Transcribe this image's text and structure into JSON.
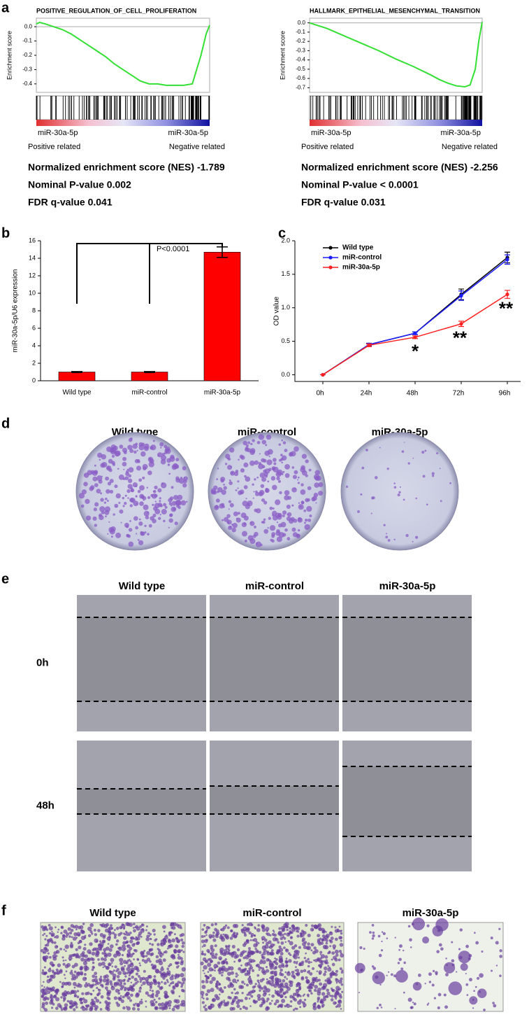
{
  "panel_labels": [
    "a",
    "b",
    "c",
    "d",
    "e",
    "f"
  ],
  "chart_data": [
    {
      "type": "gsea",
      "title": "POSITIVE_REGULATION_OF_CELL_PROLIFERATION",
      "ylabel": "Enrichment score",
      "x": [
        0,
        2,
        5,
        10,
        15,
        20,
        25,
        30,
        35,
        40,
        45,
        50,
        55,
        60,
        65,
        70,
        75,
        80,
        85,
        90,
        95,
        98,
        100
      ],
      "values": [
        0.02,
        0.03,
        0.02,
        0.0,
        -0.02,
        -0.05,
        -0.09,
        -0.13,
        -0.17,
        -0.21,
        -0.26,
        -0.3,
        -0.34,
        -0.38,
        -0.4,
        -0.4,
        -0.41,
        -0.41,
        -0.41,
        -0.4,
        -0.2,
        -0.05,
        0.01
      ],
      "color": "#33e033",
      "xlim": [
        0,
        100
      ],
      "ylim": [
        -0.44,
        0.04
      ],
      "yticks": [
        {
          "value": 0,
          "label": "0.0"
        },
        -0.1,
        -0.2,
        -0.3,
        -0.4
      ],
      "annotations": [
        "miR-30a-5p",
        "Positive related",
        "miR-30a-5p",
        "Negative related"
      ],
      "stats": [
        "Normalized enrichment score (NES)  -1.789",
        "Nominal P-value  0.002",
        "FDR q-value  0.041"
      ]
    },
    {
      "type": "gsea",
      "title": "HALLMARK_EPITHELIAL_MESENCHYMAL_TRANSITION",
      "ylabel": "Enrichment score",
      "x": [
        0,
        10,
        20,
        30,
        40,
        50,
        60,
        70,
        75,
        80,
        85,
        90,
        93,
        96,
        98,
        100
      ],
      "values": [
        0.0,
        -0.06,
        -0.14,
        -0.22,
        -0.3,
        -0.39,
        -0.47,
        -0.56,
        -0.61,
        -0.65,
        -0.68,
        -0.69,
        -0.67,
        -0.5,
        -0.2,
        0.01
      ],
      "color": "#33e033",
      "xlim": [
        0,
        100
      ],
      "ylim": [
        -0.72,
        0.02
      ],
      "yticks": [
        {
          "value": 0,
          "label": "0.0"
        },
        -0.1,
        -0.2,
        -0.3,
        -0.4,
        -0.5,
        -0.6,
        -0.7
      ],
      "annotations": [
        "miR-30a-5p",
        "Positive related",
        "miR-30a-5p",
        "Negative related"
      ],
      "stats": [
        "Normalized enrichment score (NES)  -2.256",
        "Nominal P-value < 0.0001",
        "FDR q-value  0.031"
      ]
    },
    {
      "type": "bar",
      "ylabel": "miR-30a-5p/U6 expression",
      "categories": [
        "Wild type",
        "miR-control",
        "miR-30a-5p"
      ],
      "values": [
        1,
        1,
        14.7
      ],
      "errors": [
        0.05,
        0.05,
        0.6
      ],
      "color": "#ff0000",
      "ylim": [
        0,
        16
      ],
      "yticks": [
        0,
        2,
        4,
        6,
        8,
        10,
        12,
        14,
        16
      ],
      "annotation": "P<0.0001"
    },
    {
      "type": "line",
      "ylabel": "OD value",
      "categories": [
        "0h",
        "24h",
        "48h",
        "72h",
        "96h"
      ],
      "series": [
        {
          "name": "Wild type",
          "color": "#000000",
          "values": [
            0,
            0.45,
            0.62,
            1.2,
            1.75
          ],
          "errors": [
            0,
            0.02,
            0.02,
            0.08,
            0.08
          ]
        },
        {
          "name": "miR-control",
          "color": "#1a1aff",
          "values": [
            0,
            0.45,
            0.62,
            1.18,
            1.72
          ],
          "errors": [
            0,
            0.02,
            0.02,
            0.07,
            0.07
          ]
        },
        {
          "name": "miR-30a-5p",
          "color": "#ff2020",
          "values": [
            0,
            0.44,
            0.56,
            0.76,
            1.2
          ],
          "errors": [
            0,
            0.02,
            0.02,
            0.04,
            0.06
          ]
        }
      ],
      "ylim": [
        -0.1,
        2.0
      ],
      "yticks": [
        {
          "value": 0,
          "label": "0.0"
        },
        0.5,
        {
          "value": 1,
          "label": "1.0"
        },
        1.5,
        {
          "value": 2,
          "label": "2.0"
        }
      ],
      "legend": "upper left",
      "annotations": [
        "*",
        "**",
        "**"
      ]
    }
  ],
  "colony": {
    "labels": [
      "Wild type",
      "miR-control",
      "miR-30a-5p"
    ]
  },
  "wound": {
    "labels": [
      "Wild type",
      "miR-control",
      "miR-30a-5p"
    ],
    "rows": [
      "0h",
      "48h"
    ]
  },
  "transwell": {
    "labels": [
      "Wild type",
      "miR-control",
      "miR-30a-5p"
    ]
  }
}
